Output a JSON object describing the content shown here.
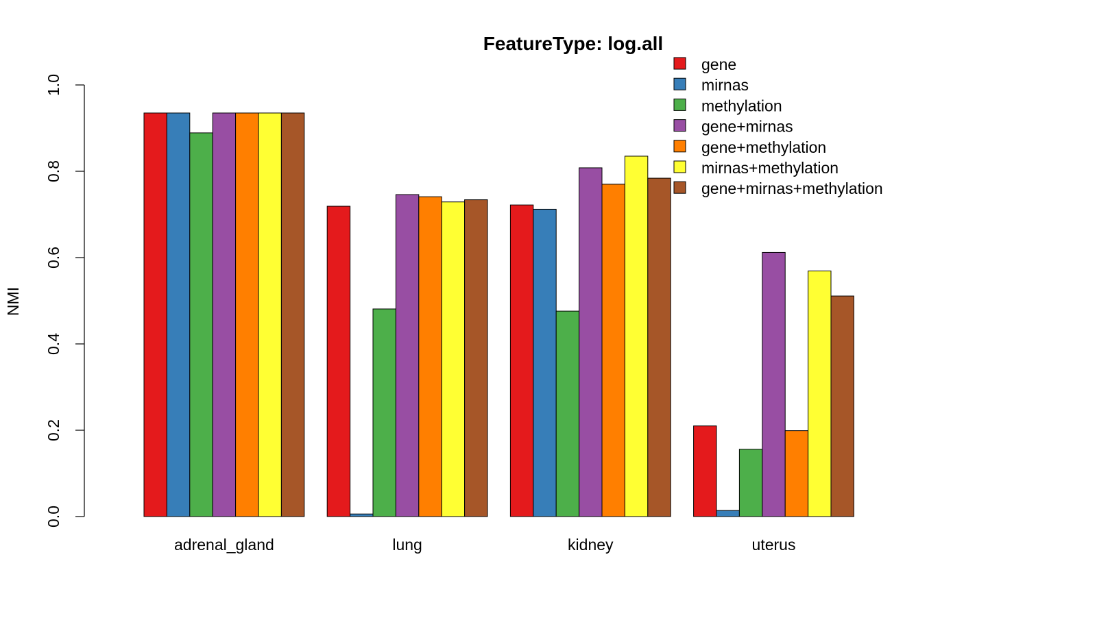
{
  "chart_data": {
    "type": "bar",
    "title": "FeatureType: log.all",
    "xlabel": "",
    "ylabel": "NMI",
    "ylim": [
      0,
      1
    ],
    "yticks": [
      "0.0",
      "0.2",
      "0.4",
      "0.6",
      "0.8",
      "1.0"
    ],
    "grid": false,
    "legend_position": "top-right",
    "categories": [
      "adrenal_gland",
      "lung",
      "kidney",
      "uterus"
    ],
    "series": [
      {
        "name": "gene",
        "color": "#e41a1c",
        "values": [
          0.935,
          0.719,
          0.722,
          0.21
        ]
      },
      {
        "name": "mirnas",
        "color": "#377eb8",
        "values": [
          0.935,
          0.006,
          0.712,
          0.014
        ]
      },
      {
        "name": "methylation",
        "color": "#4daf4a",
        "values": [
          0.889,
          0.481,
          0.476,
          0.156
        ]
      },
      {
        "name": "gene+mirnas",
        "color": "#984ea3",
        "values": [
          0.935,
          0.746,
          0.808,
          0.612
        ]
      },
      {
        "name": "gene+methylation",
        "color": "#ff7f00",
        "values": [
          0.935,
          0.741,
          0.77,
          0.199
        ]
      },
      {
        "name": "mirnas+methylation",
        "color": "#ffff33",
        "values": [
          0.935,
          0.729,
          0.835,
          0.569
        ]
      },
      {
        "name": "gene+mirnas+methylation",
        "color": "#a65628",
        "values": [
          0.935,
          0.734,
          0.784,
          0.511
        ]
      }
    ]
  }
}
